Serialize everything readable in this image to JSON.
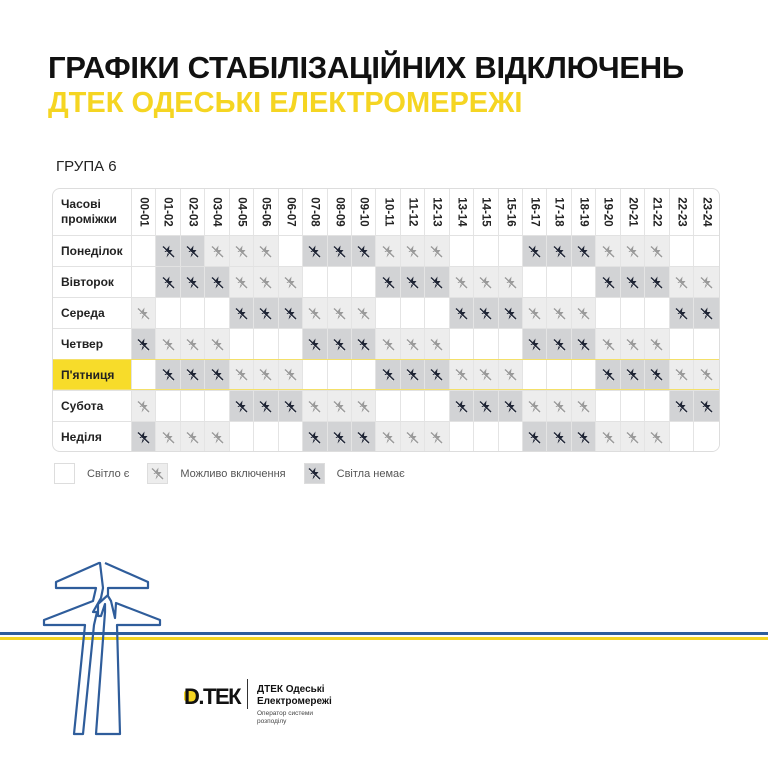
{
  "title": "ГРАФІКИ СТАБІЛІЗАЦІЙНИХ ВІДКЛЮЧЕНЬ",
  "subtitle": "ДТЕК ОДЕСЬКІ ЕЛЕКТРОМЕРЕЖІ",
  "group": "ГРУПА 6",
  "table": {
    "header_label": "Часові проміжки",
    "columns": [
      "00-01",
      "01-02",
      "02-03",
      "03-04",
      "04-05",
      "05-06",
      "06-07",
      "07-08",
      "08-09",
      "09-10",
      "10-11",
      "11-12",
      "12-13",
      "13-14",
      "14-15",
      "15-16",
      "16-17",
      "17-18",
      "18-19",
      "19-20",
      "20-21",
      "21-22",
      "22-23",
      "23-24"
    ],
    "state_key": {
      "0": "Світло є",
      "1": "Можливо включення",
      "2": "Світла немає"
    },
    "rows": [
      {
        "day": "Понеділок",
        "highlighted": false,
        "states": [
          0,
          2,
          2,
          1,
          1,
          1,
          0,
          2,
          2,
          2,
          1,
          1,
          1,
          0,
          0,
          0,
          2,
          2,
          2,
          1,
          1,
          1,
          0,
          0
        ]
      },
      {
        "day": "Вівторок",
        "highlighted": false,
        "states": [
          0,
          2,
          2,
          2,
          1,
          1,
          1,
          0,
          0,
          0,
          2,
          2,
          2,
          1,
          1,
          1,
          0,
          0,
          0,
          2,
          2,
          2,
          1,
          1
        ]
      },
      {
        "day": "Середа",
        "highlighted": false,
        "states": [
          1,
          0,
          0,
          0,
          2,
          2,
          2,
          1,
          1,
          1,
          0,
          0,
          0,
          2,
          2,
          2,
          1,
          1,
          1,
          0,
          0,
          0,
          2,
          2
        ]
      },
      {
        "day": "Четвер",
        "highlighted": false,
        "states": [
          2,
          1,
          1,
          1,
          0,
          0,
          0,
          2,
          2,
          2,
          1,
          1,
          1,
          0,
          0,
          0,
          2,
          2,
          2,
          1,
          1,
          1,
          0,
          0
        ]
      },
      {
        "day": "П'ятниця",
        "highlighted": true,
        "states": [
          0,
          2,
          2,
          2,
          1,
          1,
          1,
          0,
          0,
          0,
          2,
          2,
          2,
          1,
          1,
          1,
          0,
          0,
          0,
          2,
          2,
          2,
          1,
          1
        ]
      },
      {
        "day": "Субота",
        "highlighted": false,
        "states": [
          1,
          0,
          0,
          0,
          2,
          2,
          2,
          1,
          1,
          1,
          0,
          0,
          0,
          2,
          2,
          2,
          1,
          1,
          1,
          0,
          0,
          0,
          2,
          2
        ]
      },
      {
        "day": "Неділя",
        "highlighted": false,
        "states": [
          2,
          1,
          1,
          1,
          0,
          0,
          0,
          2,
          2,
          2,
          1,
          1,
          1,
          0,
          0,
          0,
          2,
          2,
          2,
          1,
          1,
          1,
          0,
          0
        ]
      }
    ]
  },
  "legend": [
    {
      "label": "Світло є",
      "icon": "none"
    },
    {
      "label": "Можливо включення",
      "icon": "no-power-icon-light"
    },
    {
      "label": "Світла немає",
      "icon": "no-power-icon-dark"
    }
  ],
  "colors": {
    "accent_yellow": "#f5d522",
    "brand_blue": "#2f5d9b",
    "maybe_bg": "#ededed",
    "off_bg": "#d2d3d5",
    "icon_dark": "#1f2535",
    "icon_light": "#9a9a9a"
  },
  "footer": {
    "logo_text": "ДТЕК",
    "company": "ДТЕК Одеські Електромережі",
    "tagline": "Оператор системи розподілу"
  }
}
